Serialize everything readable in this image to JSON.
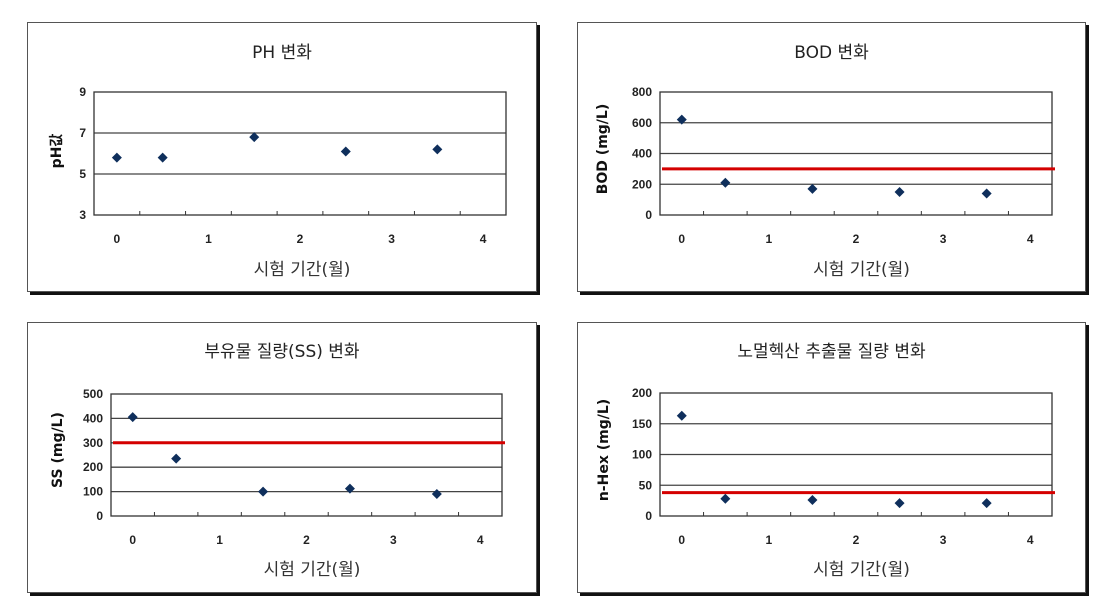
{
  "chart_data": [
    {
      "id": "ph",
      "type": "scatter",
      "title": "PH 변화",
      "xlabel": "시험 기간(월)",
      "ylabel": "pH값",
      "xlim": [
        -0.25,
        4.25
      ],
      "ylim": [
        3,
        9
      ],
      "xticks": [
        0,
        1,
        2,
        3,
        4
      ],
      "yticks": [
        3,
        5,
        7,
        9
      ],
      "grid": true,
      "x": [
        0,
        0.5,
        1.5,
        2.5,
        3.5
      ],
      "values": [
        5.8,
        5.8,
        6.8,
        6.1,
        6.2
      ],
      "reference_line": null,
      "marker_color": "#0f2f5c"
    },
    {
      "id": "bod",
      "type": "scatter",
      "title": "BOD 변화",
      "xlabel": "시험 기간(월)",
      "ylabel": "BOD (mg/L)",
      "xlim": [
        -0.25,
        4.25
      ],
      "ylim": [
        0,
        800
      ],
      "xticks": [
        0,
        1,
        2,
        3,
        4
      ],
      "yticks": [
        0,
        200,
        400,
        600,
        800
      ],
      "grid": true,
      "x": [
        0,
        0.5,
        1.5,
        2.5,
        3.5
      ],
      "values": [
        620,
        210,
        170,
        150,
        140
      ],
      "reference_line": 300,
      "reference_color": "#d40000",
      "marker_color": "#0f2f5c"
    },
    {
      "id": "ss",
      "type": "scatter",
      "title": "부유물 질량(SS) 변화",
      "xlabel": "시험 기간(월)",
      "ylabel": "SS (mg/L)",
      "xlim": [
        -0.25,
        4.25
      ],
      "ylim": [
        0,
        500
      ],
      "xticks": [
        0,
        1,
        2,
        3,
        4
      ],
      "yticks": [
        0,
        100,
        200,
        300,
        400,
        500
      ],
      "grid": true,
      "x": [
        0,
        0.5,
        1.5,
        2.5,
        3.5
      ],
      "values": [
        405,
        235,
        100,
        112,
        90
      ],
      "reference_line": 300,
      "reference_color": "#d40000",
      "marker_color": "#0f2f5c"
    },
    {
      "id": "nhex",
      "type": "scatter",
      "title": "노멀헥산 추출물 질량 변화",
      "xlabel": "시험 기간(월)",
      "ylabel": "n-Hex (mg/L)",
      "xlim": [
        -0.25,
        4.25
      ],
      "ylim": [
        0,
        200
      ],
      "xticks": [
        0,
        1,
        2,
        3,
        4
      ],
      "yticks": [
        0,
        50,
        100,
        150,
        200
      ],
      "grid": true,
      "x": [
        0,
        0.5,
        1.5,
        2.5,
        3.5
      ],
      "values": [
        163,
        28,
        26,
        21,
        21
      ],
      "reference_line": 38,
      "reference_color": "#d40000",
      "marker_color": "#0f2f5c"
    }
  ]
}
